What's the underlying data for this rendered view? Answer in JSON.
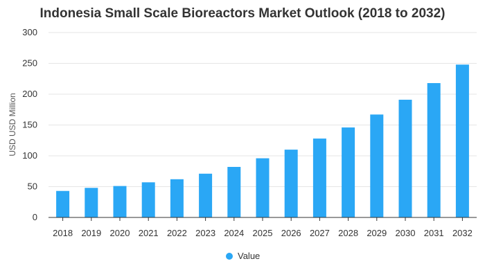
{
  "chart_data": {
    "type": "bar",
    "title": "Indonesia Small Scale Bioreactors Market Outlook (2018 to 2032)",
    "xlabel": "",
    "ylabel": "USD USD Million",
    "categories": [
      "2018",
      "2019",
      "2020",
      "2021",
      "2022",
      "2023",
      "2024",
      "2025",
      "2026",
      "2027",
      "2028",
      "2029",
      "2030",
      "2031",
      "2032"
    ],
    "series": [
      {
        "name": "Value",
        "values": [
          43,
          48,
          51,
          57,
          62,
          71,
          82,
          96,
          110,
          128,
          146,
          167,
          191,
          218,
          248
        ]
      }
    ],
    "ylim": [
      0,
      300
    ],
    "yticks": [
      0,
      50,
      100,
      150,
      200,
      250,
      300
    ],
    "grid": true,
    "legend_position": "bottom-center",
    "colors": {
      "bar": "#2aa7f5",
      "grid": "#e5e5e5",
      "axis": "#333333",
      "text": "#333333"
    }
  }
}
